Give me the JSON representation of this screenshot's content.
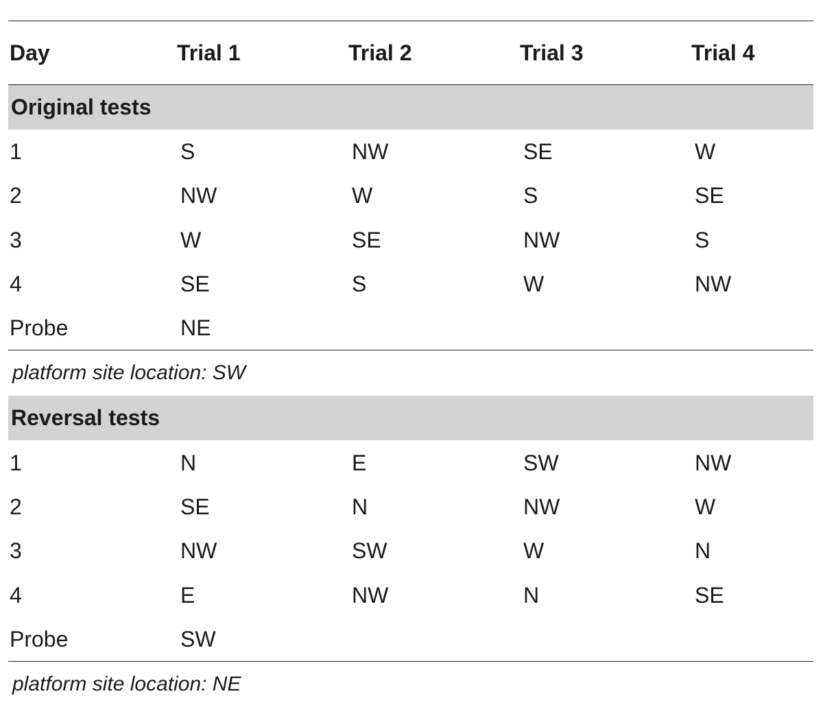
{
  "headers": [
    "Day",
    "Trial 1",
    "Trial 2",
    "Trial 3",
    "Trial 4"
  ],
  "sections": [
    {
      "title": "Original tests",
      "rows": [
        [
          "1",
          "S",
          "NW",
          "SE",
          "W"
        ],
        [
          "2",
          "NW",
          "W",
          "S",
          "SE"
        ],
        [
          "3",
          "W",
          "SE",
          "NW",
          "S"
        ],
        [
          "4",
          "SE",
          "S",
          "W",
          "NW"
        ],
        [
          "Probe",
          "NE",
          "",
          "",
          ""
        ]
      ],
      "note": "platform site location: SW"
    },
    {
      "title": "Reversal tests",
      "rows": [
        [
          "1",
          "N",
          "E",
          "SW",
          "NW"
        ],
        [
          "2",
          "SE",
          "N",
          "NW",
          "W"
        ],
        [
          "3",
          "NW",
          "SW",
          "W",
          "N"
        ],
        [
          "4",
          "E",
          "NW",
          "N",
          "SE"
        ],
        [
          "Probe",
          "SW",
          "",
          "",
          ""
        ]
      ],
      "note": "platform site location: NE"
    }
  ]
}
